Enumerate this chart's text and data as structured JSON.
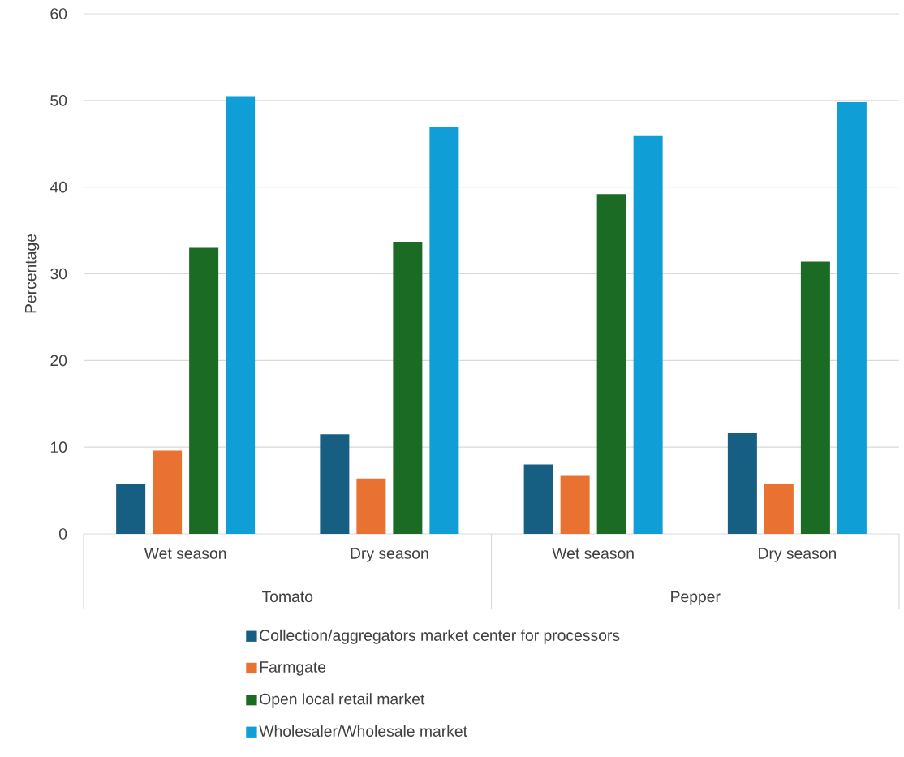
{
  "chart_data": {
    "type": "bar",
    "ylabel": "Percentage",
    "categories": [
      "Wet season",
      "Dry season",
      "Wet season",
      "Dry season"
    ],
    "annotations": [
      "Tomato",
      "Pepper"
    ],
    "series": [
      {
        "name": "Collection/aggregators market center for processors",
        "color": "#175f82",
        "values": [
          5.8,
          11.5,
          8.0,
          11.6
        ]
      },
      {
        "name": "Farmgate",
        "color": "#e97132",
        "values": [
          9.6,
          6.4,
          6.7,
          5.8
        ]
      },
      {
        "name": "Open local retail market",
        "color": "#1b6b24",
        "values": [
          33.0,
          33.7,
          39.2,
          31.4
        ]
      },
      {
        "name": "Wholesaler/Wholesale market",
        "color": "#0f9ed5",
        "values": [
          50.5,
          47.0,
          45.9,
          49.8
        ]
      }
    ],
    "ylim": [
      0,
      60
    ],
    "yticks": [
      0,
      10,
      20,
      30,
      40,
      50,
      60
    ],
    "grid": "y",
    "legend": "bottom"
  }
}
